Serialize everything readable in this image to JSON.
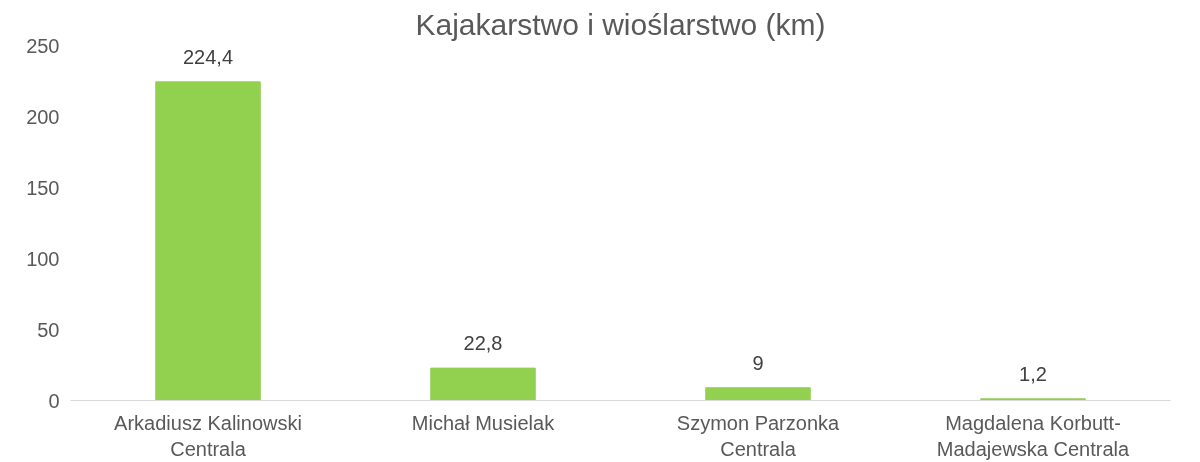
{
  "chart_data": {
    "type": "bar",
    "title": "Kajakarstwo i wioślarstwo (km)",
    "categories": [
      "Arkadiusz Kalinowski Centrala",
      "Michał Musielak",
      "Szymon Parzonka Centrala",
      "Magdalena Korbutt-Madajewska Centrala"
    ],
    "values": [
      224.4,
      22.8,
      9,
      1.2
    ],
    "value_labels": [
      "224,4",
      "22,8",
      "9",
      "1,2"
    ],
    "color": "#92d050",
    "ylim": [
      0,
      250
    ],
    "yticks": [
      0,
      50,
      100,
      150,
      200,
      250
    ],
    "grid": false
  }
}
